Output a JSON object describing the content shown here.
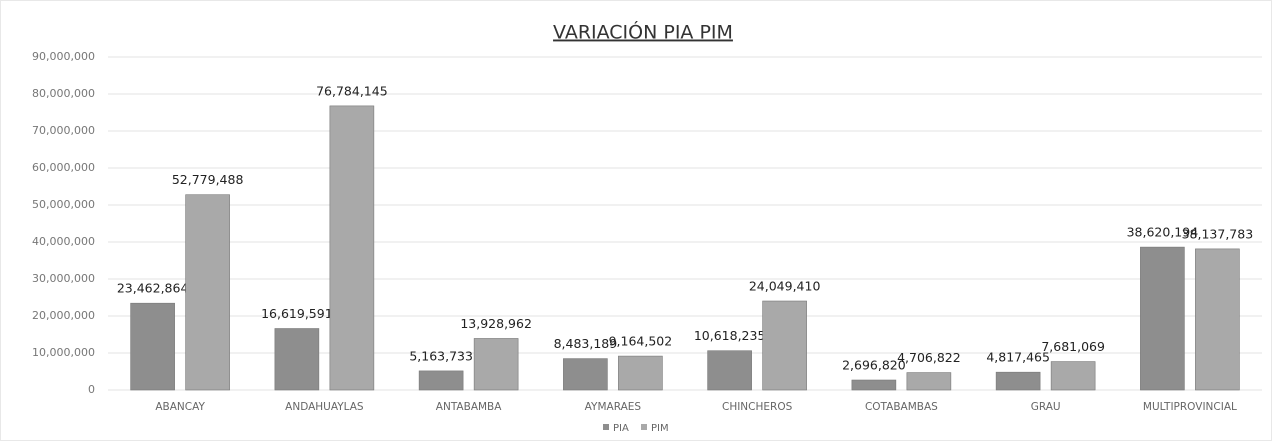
{
  "chart_data": {
    "type": "bar",
    "title": "VARIACIÓN PIA PIM",
    "categories": [
      "ABANCAY",
      "ANDAHUAYLAS",
      "ANTABAMBA",
      "AYMARAES",
      "CHINCHEROS",
      "COTABAMBAS",
      "GRAU",
      "MULTIPROVINCIAL"
    ],
    "series": [
      {
        "name": "PIA",
        "color": "#8e8e8e",
        "values": [
          23462864,
          16619591,
          5163733,
          8483189,
          10618235,
          2696820,
          4817465,
          38620194
        ],
        "value_labels": [
          "23,462,864",
          "16,619,591",
          "5,163,733",
          "8,483,189",
          "10,618,235",
          "2,696,820",
          "4,817,465",
          "38,620,194"
        ]
      },
      {
        "name": "PIM",
        "color": "#a9a9a9",
        "values": [
          52779488,
          76784145,
          13928962,
          9164502,
          24049410,
          4706822,
          7681069,
          38137783
        ],
        "value_labels": [
          "52,779,488",
          "76,784,145",
          "13,928,962",
          "9,164,502",
          "24,049,410",
          "4,706,822",
          "7,681,069",
          "38,137,783"
        ]
      }
    ],
    "ylim": [
      0,
      90000000
    ],
    "yticks": [
      0,
      {
        "value": 10000000,
        "label": "10,000,000"
      },
      {
        "value": 20000000,
        "label": "20,000,000"
      },
      {
        "value": 30000000,
        "label": "30,000,000"
      },
      {
        "value": 40000000,
        "label": "40,000,000"
      },
      {
        "value": 50000000,
        "label": "50,000,000"
      },
      {
        "value": 60000000,
        "label": "60,000,000"
      },
      {
        "value": 70000000,
        "label": "70,000,000"
      },
      {
        "value": 80000000,
        "label": "80,000,000"
      },
      {
        "value": 90000000,
        "label": "90,000,000"
      }
    ],
    "grid": true,
    "legend": "bottom"
  }
}
